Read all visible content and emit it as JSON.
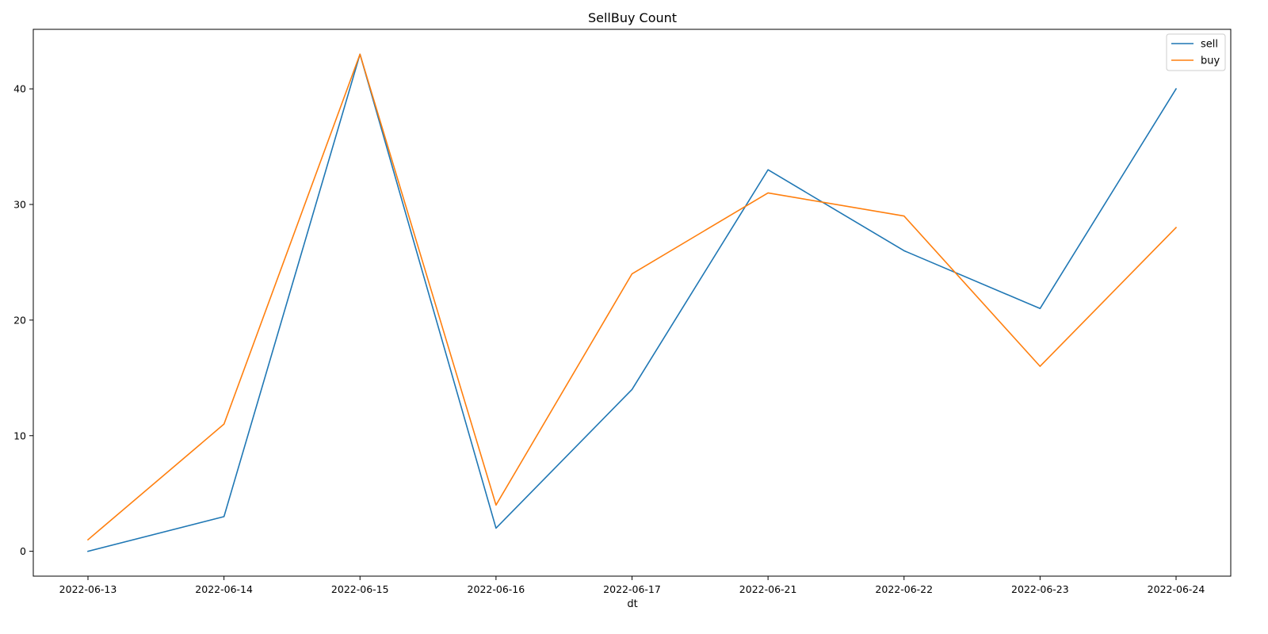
{
  "chart_data": {
    "type": "line",
    "title": "SellBuy Count",
    "xlabel": "dt",
    "ylabel": "",
    "categories": [
      "2022-06-13",
      "2022-06-14",
      "2022-06-15",
      "2022-06-16",
      "2022-06-17",
      "2022-06-21",
      "2022-06-22",
      "2022-06-23",
      "2022-06-24"
    ],
    "series": [
      {
        "name": "sell",
        "color": "#1f77b4",
        "values": [
          0,
          3,
          43,
          2,
          14,
          33,
          26,
          21,
          40
        ]
      },
      {
        "name": "buy",
        "color": "#ff7f0e",
        "values": [
          1,
          11,
          43,
          4,
          24,
          31,
          29,
          16,
          28
        ]
      }
    ],
    "ylim": [
      -2.15,
      45.15
    ],
    "yticks": [
      0,
      10,
      20,
      30,
      40
    ],
    "grid": false,
    "legend": "top-right"
  }
}
